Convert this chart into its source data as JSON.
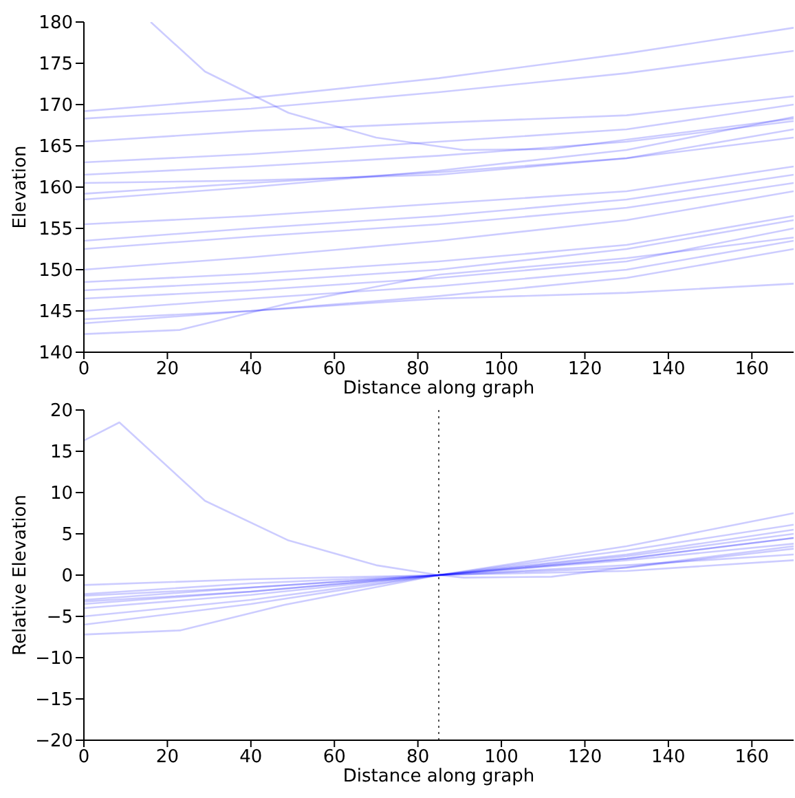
{
  "chart_data": [
    {
      "type": "line",
      "xlabel": "Distance along graph",
      "ylabel": "Elevation",
      "xlim": [
        0,
        170
      ],
      "xticks": [
        0,
        20,
        40,
        60,
        80,
        100,
        120,
        140,
        160
      ],
      "ylim": [
        140,
        180
      ],
      "yticks": [
        140,
        145,
        150,
        155,
        160,
        165,
        170,
        175,
        180
      ],
      "grid": false,
      "legend": false,
      "marker": "none",
      "line_style": "solid",
      "x": [
        0,
        40,
        85,
        130,
        170
      ],
      "series": [
        {
          "color": "#0000ff",
          "x": [
            16,
            29,
            49,
            70,
            91,
            112,
            170
          ],
          "values": [
            180,
            174,
            169,
            166,
            164.5,
            164.6,
            168.3
          ]
        },
        {
          "color": "#0000ff",
          "values": [
            169.2,
            170.8,
            173.2,
            176.2,
            179.3
          ]
        },
        {
          "color": "#0000ff",
          "values": [
            168.3,
            169.5,
            171.5,
            173.8,
            176.5
          ]
        },
        {
          "color": "#0000ff",
          "values": [
            165.5,
            166.8,
            167.8,
            168.7,
            171
          ]
        },
        {
          "color": "#0000ff",
          "values": [
            163,
            164,
            165.5,
            167,
            170
          ]
        },
        {
          "color": "#0000ff",
          "values": [
            161.5,
            162.5,
            163.8,
            165.5,
            168
          ]
        },
        {
          "color": "#0000ff",
          "values": [
            160.5,
            160.8,
            161.5,
            163.5,
            167
          ]
        },
        {
          "color": "#0000ff",
          "values": [
            159.2,
            160.5,
            161.8,
            163.5,
            166
          ]
        },
        {
          "color": "#0000ff",
          "values": [
            158.5,
            160,
            162,
            164.5,
            168.5
          ]
        },
        {
          "color": "#0000ff",
          "values": [
            155.5,
            156.5,
            158,
            159.5,
            162.5
          ]
        },
        {
          "color": "#0000ff",
          "values": [
            153.5,
            155,
            156.5,
            158.5,
            161.5
          ]
        },
        {
          "color": "#0000ff",
          "values": [
            152.5,
            154,
            155.5,
            157.5,
            160.5
          ]
        },
        {
          "color": "#0000ff",
          "values": [
            150,
            151.5,
            153.5,
            156,
            159.5
          ]
        },
        {
          "color": "#0000ff",
          "values": [
            148.5,
            149.5,
            151,
            153,
            156.5
          ]
        },
        {
          "color": "#0000ff",
          "values": [
            147.5,
            148.5,
            150,
            152.5,
            156
          ]
        },
        {
          "color": "#0000ff",
          "values": [
            146.5,
            147.5,
            149,
            151,
            155
          ]
        },
        {
          "color": "#0000ff",
          "values": [
            145,
            146.5,
            148,
            150,
            153.5
          ]
        },
        {
          "color": "#0000ff",
          "values": [
            144,
            145,
            146.8,
            149,
            152.5
          ]
        },
        {
          "color": "#0000ff",
          "values": [
            143.5,
            145,
            146.5,
            147.2,
            148.3
          ]
        },
        {
          "color": "#0000ff",
          "x": [
            0,
            23,
            48,
            85,
            130,
            170
          ],
          "values": [
            142.2,
            142.7,
            145.8,
            149.4,
            151.4,
            153.9
          ]
        }
      ]
    },
    {
      "type": "line",
      "xlabel": "Distance along graph",
      "ylabel": "Relative Elevation",
      "xlim": [
        0,
        170
      ],
      "xticks": [
        0,
        20,
        40,
        60,
        80,
        100,
        120,
        140,
        160
      ],
      "ylim": [
        -20,
        20
      ],
      "yticks": [
        -20,
        -15,
        -10,
        -5,
        0,
        5,
        10,
        15,
        20
      ],
      "grid": false,
      "legend": false,
      "marker": "none",
      "line_style": "solid",
      "x": [
        0,
        40,
        85,
        130,
        170
      ],
      "ref_lines": [
        {
          "axis": "x",
          "value": 85,
          "color": "#555555",
          "line_style": "dotted"
        }
      ],
      "series": [
        {
          "color": "#0000ff",
          "x": [
            0,
            8.5,
            29,
            49,
            70,
            85,
            91,
            112,
            170
          ],
          "values": [
            16.3,
            18.5,
            9,
            4.2,
            1.2,
            0,
            -0.3,
            -0.2,
            3.5
          ]
        },
        {
          "color": "#0000ff",
          "values": [
            -4,
            -2.4,
            0,
            3,
            6.1
          ]
        },
        {
          "color": "#0000ff",
          "values": [
            -3.2,
            -2,
            0,
            2.3,
            5
          ]
        },
        {
          "color": "#0000ff",
          "values": [
            -2.3,
            -1,
            0,
            0.9,
            3.2
          ]
        },
        {
          "color": "#0000ff",
          "values": [
            -5,
            -3,
            0,
            3.5,
            7.5
          ]
        },
        {
          "color": "#0000ff",
          "values": [
            -6,
            -3.5,
            0,
            2.5,
            5.5
          ]
        },
        {
          "color": "#0000ff",
          "values": [
            -1.2,
            -0.5,
            0,
            1.2,
            2.5
          ]
        },
        {
          "color": "#0000ff",
          "values": [
            -3.5,
            -2,
            0,
            2,
            4.5
          ]
        },
        {
          "color": "#0000ff",
          "values": [
            -2.5,
            -1.5,
            0,
            1.8,
            3.8
          ]
        },
        {
          "color": "#0000ff",
          "values": [
            -3,
            -1.5,
            0,
            0.5,
            1.8
          ]
        },
        {
          "color": "#0000ff",
          "x": [
            0,
            23,
            48,
            85,
            130,
            170
          ],
          "values": [
            -7.2,
            -6.7,
            -3.6,
            0,
            2,
            4.5
          ]
        }
      ]
    }
  ]
}
